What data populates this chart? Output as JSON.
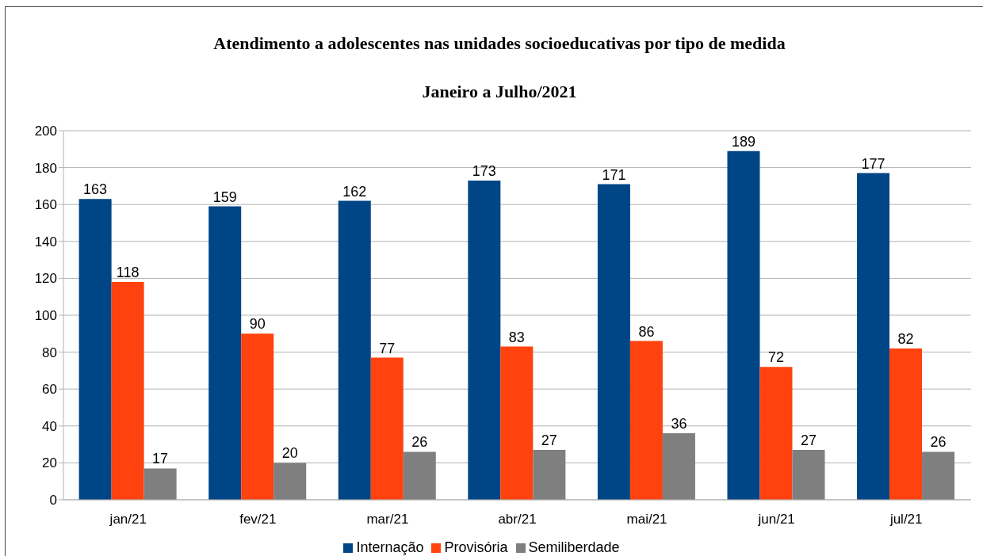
{
  "chart_data": {
    "type": "bar",
    "title": "Atendimento a adolescentes nas unidades socioeducativas por tipo de medida",
    "subtitle": "Janeiro a Julho/2021",
    "categories": [
      "jan/21",
      "fev/21",
      "mar/21",
      "abr/21",
      "mai/21",
      "jun/21",
      "jul/21"
    ],
    "series": [
      {
        "name": "Internação",
        "color": "#004586",
        "values": [
          163,
          159,
          162,
          173,
          171,
          189,
          177
        ]
      },
      {
        "name": "Provisória",
        "color": "#ff420e",
        "values": [
          118,
          90,
          77,
          83,
          86,
          72,
          82
        ]
      },
      {
        "name": "Semiliberdade",
        "color": "#7f7f7f",
        "values": [
          17,
          20,
          26,
          27,
          36,
          27,
          26
        ]
      }
    ],
    "ylim": [
      0,
      200
    ],
    "yticks": [
      0,
      20,
      40,
      60,
      80,
      100,
      120,
      140,
      160,
      180,
      200
    ],
    "grid": "y",
    "legend": "bottom",
    "data_labels": true
  }
}
